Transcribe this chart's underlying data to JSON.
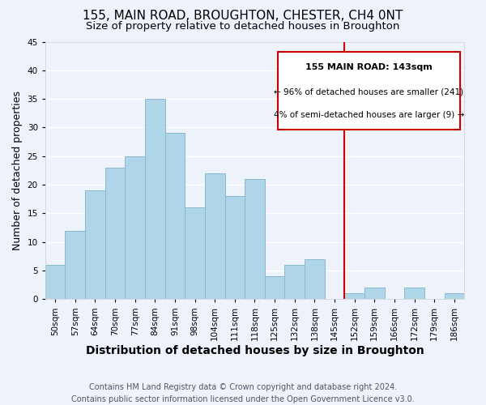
{
  "title": "155, MAIN ROAD, BROUGHTON, CHESTER, CH4 0NT",
  "subtitle": "Size of property relative to detached houses in Broughton",
  "xlabel": "Distribution of detached houses by size in Broughton",
  "ylabel": "Number of detached properties",
  "footer_line1": "Contains HM Land Registry data © Crown copyright and database right 2024.",
  "footer_line2": "Contains public sector information licensed under the Open Government Licence v3.0.",
  "bin_labels": [
    "50sqm",
    "57sqm",
    "64sqm",
    "70sqm",
    "77sqm",
    "84sqm",
    "91sqm",
    "98sqm",
    "104sqm",
    "111sqm",
    "118sqm",
    "125sqm",
    "132sqm",
    "138sqm",
    "145sqm",
    "152sqm",
    "159sqm",
    "166sqm",
    "172sqm",
    "179sqm",
    "186sqm"
  ],
  "bar_values": [
    6,
    12,
    19,
    23,
    25,
    35,
    29,
    16,
    22,
    18,
    21,
    4,
    6,
    7,
    0,
    1,
    2,
    0,
    2,
    0,
    1
  ],
  "bar_color": "#aed6e8",
  "bar_edge_color": "#8ab8cc",
  "vline_color": "#cc0000",
  "annotation_title": "155 MAIN ROAD: 143sqm",
  "annotation_line1": "← 96% of detached houses are smaller (241)",
  "annotation_line2": "4% of semi-detached houses are larger (9) →",
  "ylim": [
    0,
    45
  ],
  "yticks": [
    0,
    5,
    10,
    15,
    20,
    25,
    30,
    35,
    40,
    45
  ],
  "background_color": "#eef2fb",
  "grid_color": "#ffffff",
  "title_fontsize": 11,
  "subtitle_fontsize": 9.5,
  "xlabel_fontsize": 10,
  "ylabel_fontsize": 9,
  "tick_fontsize": 7.5,
  "footer_fontsize": 7
}
